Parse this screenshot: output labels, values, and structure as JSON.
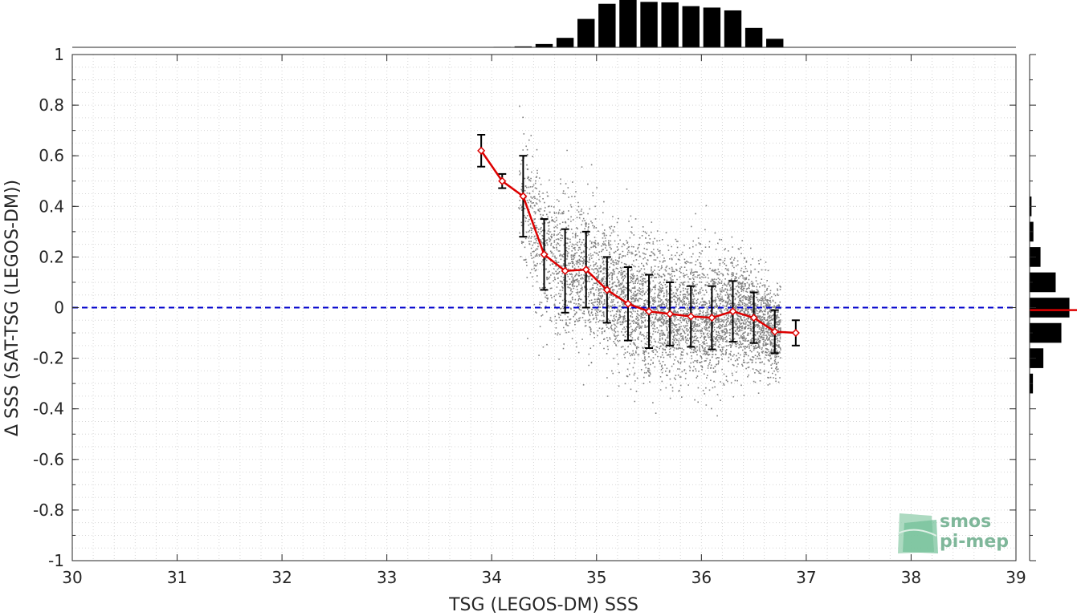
{
  "chart_data": {
    "type": "scatter",
    "title": "",
    "xlabel": "TSG (LEGOS-DM) SSS",
    "ylabel": "Δ SSS (SAT-TSG (LEGOS-DM))",
    "xlim": [
      30,
      39
    ],
    "ylim": [
      -1,
      1
    ],
    "xticks": [
      "30",
      "31",
      "32",
      "33",
      "34",
      "35",
      "36",
      "37",
      "38",
      "39"
    ],
    "yticks": [
      "1",
      "0.8",
      "0.6",
      "0.4",
      "0.2",
      "0",
      "-0.2",
      "-0.4",
      "-0.6",
      "-0.8",
      "-1"
    ],
    "grid": true,
    "reference_line": {
      "y": 0,
      "color": "#0000cc",
      "style": "dashed"
    },
    "scatter_color": "#808080",
    "binned_median": {
      "color": "#dd0000",
      "x": [
        33.9,
        34.1,
        34.3,
        34.5,
        34.7,
        34.9,
        35.1,
        35.3,
        35.5,
        35.7,
        35.9,
        36.1,
        36.3,
        36.5,
        36.7,
        36.9
      ],
      "y": [
        0.62,
        0.5,
        0.44,
        0.21,
        0.145,
        0.15,
        0.07,
        0.015,
        -0.015,
        -0.025,
        -0.035,
        -0.04,
        -0.015,
        -0.04,
        -0.095,
        -0.1
      ],
      "err": [
        0.063,
        0.028,
        0.16,
        0.14,
        0.165,
        0.15,
        0.13,
        0.145,
        0.145,
        0.125,
        0.12,
        0.125,
        0.12,
        0.1,
        0.085,
        0.05
      ]
    },
    "top_histogram": {
      "bin_centers": [
        34.1,
        34.3,
        34.5,
        34.7,
        34.9,
        35.1,
        35.3,
        35.5,
        35.7,
        35.9,
        36.1,
        36.3,
        36.5,
        36.7
      ],
      "counts": [
        0.01,
        0.02,
        0.07,
        0.2,
        0.6,
        0.92,
        1.0,
        0.96,
        0.95,
        0.87,
        0.84,
        0.78,
        0.41,
        0.18
      ]
    },
    "right_histogram": {
      "bin_centers": [
        0.4,
        0.3,
        0.2,
        0.1,
        0.0,
        -0.1,
        -0.2,
        -0.3
      ],
      "counts": [
        0.04,
        0.08,
        0.23,
        0.55,
        0.84,
        0.67,
        0.29,
        0.07
      ],
      "median_line": -0.01,
      "median_color": "#dd0000"
    }
  },
  "logo": {
    "line1": "smos",
    "line2": "pi-mep"
  }
}
